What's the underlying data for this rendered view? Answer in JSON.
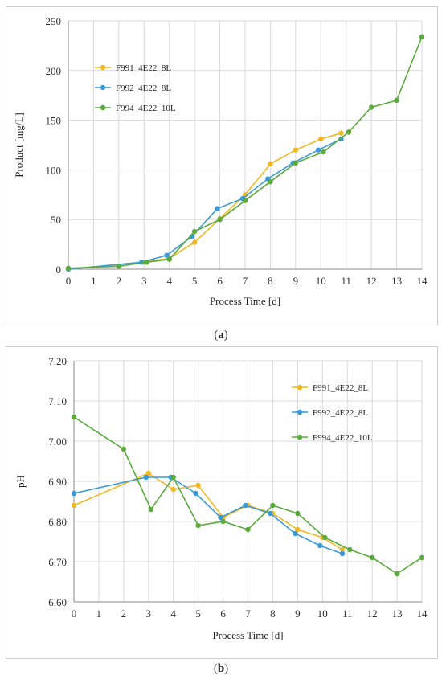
{
  "captions": {
    "a_letter": "a",
    "b_letter": "b"
  },
  "colors": {
    "F991": "#f2b824",
    "F992": "#3a9ad9",
    "F994": "#5aab3c",
    "grid": "#d9d9d9",
    "axis": "#888888"
  },
  "chart_data": [
    {
      "id": "a",
      "type": "line",
      "xlabel": "Process Time  [d]",
      "ylabel": "Product [mg/L]",
      "xlim": [
        0,
        14
      ],
      "ylim": [
        0,
        250
      ],
      "xticks": [
        "0",
        "1",
        "2",
        "3",
        "4",
        "5",
        "6",
        "7",
        "8",
        "9",
        "10",
        "11",
        "12",
        "13",
        "14"
      ],
      "yticks": [
        "0",
        "50",
        "100",
        "150",
        "200",
        "250"
      ],
      "grid": true,
      "legend_position": "upper-left",
      "series": [
        {
          "name": "F991_4E22_8L",
          "color": "#f2b824",
          "x": [
            0,
            3,
            4,
            5,
            6,
            7,
            8,
            9,
            10,
            10.8
          ],
          "y": [
            0,
            7,
            11,
            27,
            51,
            75,
            106,
            120,
            131,
            137
          ]
        },
        {
          "name": "F992_4E22_8L",
          "color": "#3a9ad9",
          "x": [
            0,
            2.9,
            3.9,
            4.9,
            5.9,
            6.9,
            7.9,
            8.9,
            9.9,
            10.8
          ],
          "y": [
            0,
            7,
            14,
            33,
            61,
            71,
            91,
            107,
            120,
            131
          ]
        },
        {
          "name": "F994_4E22_10L",
          "color": "#5aab3c",
          "x": [
            0,
            2,
            3.1,
            4,
            5,
            6,
            7,
            8,
            9,
            10.1,
            11.1,
            12,
            13,
            14
          ],
          "y": [
            1,
            3,
            7,
            10,
            38,
            50,
            69,
            88,
            107,
            118,
            138,
            163,
            170,
            234
          ]
        }
      ]
    },
    {
      "id": "b",
      "type": "line",
      "xlabel": "Process Time  [d]",
      "ylabel": "pH",
      "xlim": [
        0,
        14
      ],
      "ylim": [
        6.6,
        7.2
      ],
      "xticks": [
        "0",
        "1",
        "2",
        "3",
        "4",
        "5",
        "6",
        "7",
        "8",
        "9",
        "10",
        "11",
        "12",
        "13",
        "14"
      ],
      "yticks": [
        "6.60",
        "6.70",
        "6.80",
        "6.90",
        "7.00",
        "7.10",
        "7.20"
      ],
      "grid": true,
      "legend_position": "upper-right",
      "series": [
        {
          "name": "F991_4E22_8L",
          "color": "#f2b824",
          "x": [
            0,
            3,
            4,
            5,
            6,
            7,
            8,
            9,
            10,
            10.8
          ],
          "y": [
            6.84,
            6.92,
            6.88,
            6.89,
            6.81,
            6.84,
            6.82,
            6.78,
            6.76,
            6.73
          ]
        },
        {
          "name": "F992_4E22_8L",
          "color": "#3a9ad9",
          "x": [
            0,
            2.9,
            3.9,
            4.9,
            5.9,
            6.9,
            7.9,
            8.9,
            9.9,
            10.8
          ],
          "y": [
            6.87,
            6.91,
            6.91,
            6.87,
            6.81,
            6.84,
            6.82,
            6.77,
            6.74,
            6.72
          ]
        },
        {
          "name": "F994_4E22_10L",
          "color": "#5aab3c",
          "x": [
            0,
            2,
            3.1,
            4,
            5,
            6,
            7,
            8,
            9,
            10.1,
            11.1,
            12,
            13,
            14
          ],
          "y": [
            7.06,
            6.98,
            6.83,
            6.91,
            6.79,
            6.8,
            6.78,
            6.84,
            6.82,
            6.76,
            6.73,
            6.71,
            6.67,
            6.71
          ]
        }
      ]
    }
  ]
}
